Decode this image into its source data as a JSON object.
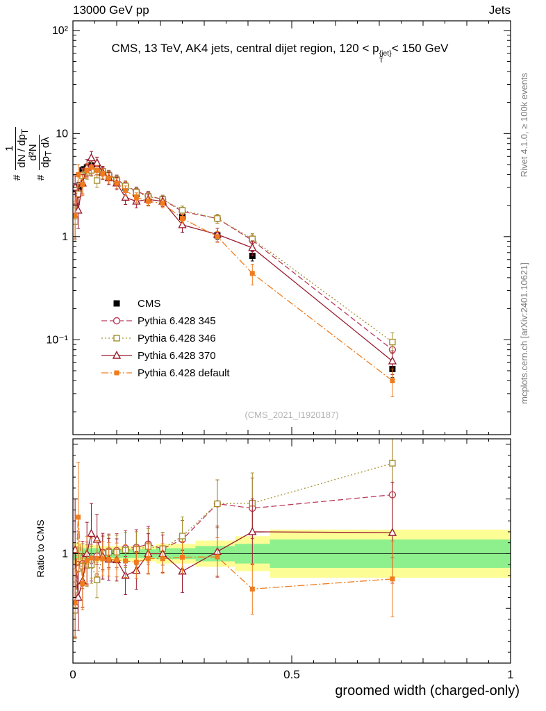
{
  "header": {
    "left": "13000 GeV pp",
    "right": "Jets"
  },
  "titles": {
    "main": "CMS, 13 TeV, AK4 jets, central dijet region, 120 < p",
    "sup": "{jet}",
    "sub": "T",
    "end": "< 150 GeV"
  },
  "ylabel": {
    "h1": "#",
    "num1": "1",
    "den1a": "dN / dp",
    "den1sub": "T",
    "h2": "#",
    "num2": "d²N",
    "den2a": "dp",
    "den2sub": "T",
    "den2b": " dλ"
  },
  "ratio_axis_label": "Ratio to CMS",
  "x_axis_label": "groomed width (charged-only)",
  "watermark": "(CMS_2021_I1920187)",
  "side_labels": {
    "rivet": "Rivet 4.1.0, ≥ 100k events",
    "mcplots": "mcplots.cern.ch [arXiv:2401.10621]"
  },
  "chart_data": {
    "type": "line",
    "title": "CMS, 13 TeV, AK4 jets, central dijet region, 120 < p_T^{jet} < 150 GeV",
    "xlabel": "groomed width (charged-only)",
    "legend_position": "inside-left-middle",
    "grid": false,
    "x": [
      0.005,
      0.012,
      0.022,
      0.032,
      0.042,
      0.055,
      0.068,
      0.082,
      0.1,
      0.12,
      0.145,
      0.172,
      0.205,
      0.25,
      0.33,
      0.41,
      0.73
    ],
    "series": [
      {
        "id": "cms",
        "name": "CMS",
        "color": "#000000",
        "marker": "square-filled",
        "line": "none",
        "y": [
          2.9,
          3.0,
          4.4,
          4.7,
          4.9,
          4.6,
          4.3,
          3.9,
          3.5,
          3.0,
          2.6,
          2.3,
          2.2,
          1.55,
          1.03,
          0.65,
          0.052
        ],
        "yerr": [
          0.35,
          0.35,
          0.4,
          0.4,
          0.4,
          0.35,
          0.32,
          0.3,
          0.26,
          0.23,
          0.2,
          0.18,
          0.16,
          0.12,
          0.09,
          0.07,
          0.009
        ]
      },
      {
        "id": "py345",
        "name": "Pythia 6.428 345",
        "color": "#bc3a5a",
        "marker": "circle-open",
        "line": "dashed",
        "y": [
          1.5,
          2.7,
          4.0,
          4.3,
          4.5,
          4.5,
          4.35,
          4.0,
          3.6,
          3.15,
          2.75,
          2.5,
          2.3,
          1.75,
          1.5,
          0.92,
          0.08
        ],
        "yerr": [
          0.55,
          0.6,
          0.6,
          0.6,
          0.55,
          0.5,
          0.45,
          0.4,
          0.36,
          0.32,
          0.28,
          0.25,
          0.22,
          0.18,
          0.15,
          0.12,
          0.02
        ]
      },
      {
        "id": "py346",
        "name": "Pythia 6.428 346",
        "color": "#a3902f",
        "marker": "square-open",
        "line": "dotted",
        "y": [
          1.4,
          2.6,
          3.9,
          4.2,
          4.4,
          3.5,
          4.3,
          3.95,
          3.55,
          3.1,
          2.7,
          2.45,
          2.3,
          1.8,
          1.5,
          0.95,
          0.095
        ],
        "yerr": [
          0.5,
          0.55,
          0.6,
          0.6,
          0.55,
          0.5,
          0.45,
          0.4,
          0.36,
          0.32,
          0.28,
          0.25,
          0.22,
          0.18,
          0.15,
          0.12,
          0.022
        ]
      },
      {
        "id": "py370",
        "name": "Pythia 6.428 370",
        "color": "#9b1c2e",
        "marker": "triangle-open",
        "line": "solid",
        "y": [
          3.0,
          1.8,
          3.3,
          4.7,
          5.8,
          5.2,
          4.2,
          3.7,
          3.3,
          2.4,
          2.2,
          2.3,
          2.2,
          1.3,
          1.05,
          0.78,
          0.062
        ],
        "yerr": [
          0.9,
          0.6,
          0.7,
          0.9,
          0.9,
          0.7,
          0.6,
          0.5,
          0.45,
          0.35,
          0.3,
          0.28,
          0.25,
          0.2,
          0.16,
          0.13,
          0.016
        ]
      },
      {
        "id": "pydefault",
        "name": "Pythia 6.428 default",
        "color": "#ef7c1f",
        "marker": "square-filled-small",
        "line": "dashdot",
        "y": [
          1.6,
          4.0,
          3.2,
          4.4,
          4.7,
          4.4,
          4.1,
          3.7,
          3.3,
          2.8,
          2.4,
          2.2,
          2.1,
          1.5,
          1.0,
          0.44,
          0.04
        ],
        "yerr": [
          0.6,
          1.0,
          0.7,
          0.7,
          0.6,
          0.5,
          0.45,
          0.4,
          0.36,
          0.3,
          0.26,
          0.22,
          0.2,
          0.15,
          0.12,
          0.1,
          0.012
        ]
      }
    ],
    "xaxis": {
      "lim": [
        0,
        1
      ],
      "ticks": [
        {
          "v": 0,
          "label": "0"
        },
        {
          "v": 0.5,
          "label": "0.5"
        },
        {
          "v": 1,
          "label": "1"
        }
      ]
    },
    "main_axis": {
      "scale": "log",
      "lim": [
        0.012,
        124
      ],
      "ticks": [
        {
          "v": 100,
          "label": "10²"
        },
        {
          "v": 10,
          "label": "10"
        },
        {
          "v": 1,
          "label": "1"
        },
        {
          "v": 0.1,
          "label": "10⁻¹"
        }
      ]
    },
    "ratio_axis": {
      "scale": "linear",
      "lim": [
        0,
        2.05
      ],
      "ticks": [
        {
          "v": 1,
          "label": "1"
        }
      ]
    },
    "ratio_reference": "cms",
    "ratio_bands": [
      {
        "x0": 0.0,
        "x1": 0.02,
        "green": 0.06,
        "yellow": 0.1
      },
      {
        "x0": 0.02,
        "x1": 0.06,
        "green": 0.05,
        "yellow": 0.08
      },
      {
        "x0": 0.06,
        "x1": 0.19,
        "green": 0.04,
        "yellow": 0.07
      },
      {
        "x0": 0.19,
        "x1": 0.28,
        "green": 0.05,
        "yellow": 0.09
      },
      {
        "x0": 0.28,
        "x1": 0.37,
        "green": 0.07,
        "yellow": 0.12
      },
      {
        "x0": 0.37,
        "x1": 0.45,
        "green": 0.09,
        "yellow": 0.16
      },
      {
        "x0": 0.45,
        "x1": 1.0,
        "green": 0.13,
        "yellow": 0.22
      }
    ],
    "colors": {
      "band_green": "#8df08d",
      "band_yellow": "#fdfd96"
    }
  }
}
